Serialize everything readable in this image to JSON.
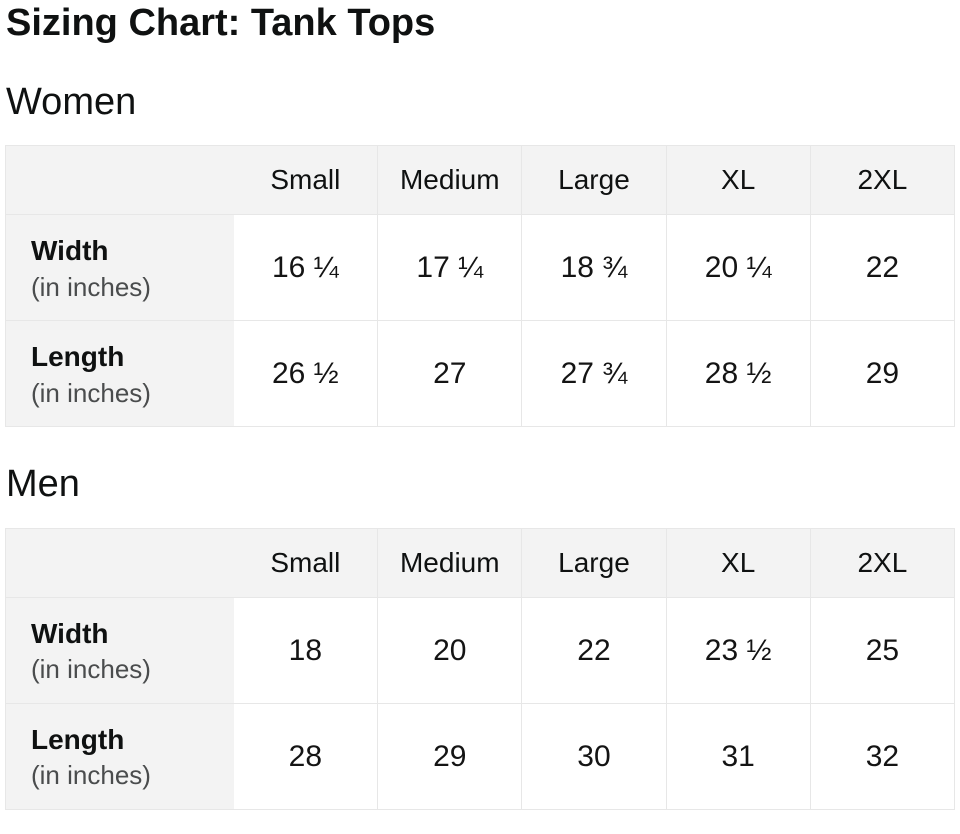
{
  "title": "Sizing Chart: Tank Tops",
  "colors": {
    "background": "#ffffff",
    "header_cell_bg": "#f3f3f3",
    "border": "#e7e7e7",
    "text": "#0f1111",
    "sublabel_text": "#4a4c4d"
  },
  "sections": [
    {
      "heading": "Women",
      "columns": [
        "Small",
        "Medium",
        "Large",
        "XL",
        "2XL"
      ],
      "rows": [
        {
          "label": "Width",
          "sublabel": "(in inches)",
          "values": [
            "16 ¼",
            "17 ¼",
            "18 ¾",
            "20 ¼",
            "22"
          ]
        },
        {
          "label": "Length",
          "sublabel": "(in inches)",
          "values": [
            "26 ½",
            "27",
            "27 ¾",
            "28 ½",
            "29"
          ]
        }
      ]
    },
    {
      "heading": "Men",
      "columns": [
        "Small",
        "Medium",
        "Large",
        "XL",
        "2XL"
      ],
      "rows": [
        {
          "label": "Width",
          "sublabel": "(in inches)",
          "values": [
            "18",
            "20",
            "22",
            "23 ½",
            "25"
          ]
        },
        {
          "label": "Length",
          "sublabel": "(in inches)",
          "values": [
            "28",
            "29",
            "30",
            "31",
            "32"
          ]
        }
      ]
    }
  ]
}
